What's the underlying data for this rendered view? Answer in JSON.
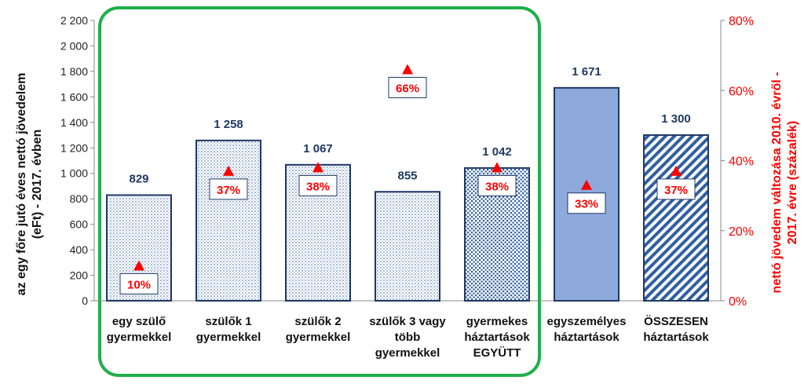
{
  "chart_data": {
    "type": "bar",
    "categories": [
      [
        "egy szülő",
        "gyermekkel"
      ],
      [
        "szülők 1",
        "gyermekkel"
      ],
      [
        "szülők 2",
        "gyermekkel"
      ],
      [
        "szülők 3 vagy",
        "több",
        "gyermekkel"
      ],
      [
        "gyermekes",
        "háztartások",
        "EGYÜTT"
      ],
      [
        "egyszemélyes",
        "háztartások"
      ],
      [
        "ÖSSZESEN",
        "háztartások"
      ]
    ],
    "values": [
      829,
      1258,
      1067,
      855,
      1042,
      1671,
      1300
    ],
    "value_labels": [
      "829",
      "1 258",
      "1 067",
      "855",
      "1 042",
      "1 671",
      "1 300"
    ],
    "series2": {
      "axis": "right",
      "marker": "triangle",
      "values": [
        10,
        37,
        38,
        66,
        38,
        33,
        37
      ],
      "labels": [
        "10%",
        "37%",
        "38%",
        "66%",
        "38%",
        "33%",
        "37%"
      ]
    },
    "bar_fills": [
      "dots-sparse",
      "dots-sparse",
      "dots-sparse",
      "dots-sparse",
      "dots-dense",
      "solid",
      "diagonal-stripes"
    ],
    "ylabel": "az egy főre jutó éves nettó jövedelem (eFt) - 2017. évben",
    "y2label": "nettó jövedem változása 2010. évről - 2017. évre (százalék)",
    "ylim": [
      0,
      2200
    ],
    "yticks": [
      "0",
      "200",
      "400",
      "600",
      "800",
      "1 000",
      "1 200",
      "1 400",
      "1 600",
      "1 800",
      "2 000",
      "2 200"
    ],
    "y2lim": [
      0,
      80
    ],
    "y2ticks": [
      "0%",
      "20%",
      "40%",
      "60%",
      "80%"
    ],
    "grid": false,
    "highlight": "green rounded box around the first five categories",
    "colors": {
      "bar_edge": "#1F3864",
      "pattern": "#2E5FA3",
      "solid_bar": "#8EA9DB",
      "value_label": "#1F3864",
      "marker": "#FF0000",
      "pct_label": "#FF0000",
      "highlight_box": "#1FAF4B",
      "right_axis": "#FF0000"
    }
  }
}
